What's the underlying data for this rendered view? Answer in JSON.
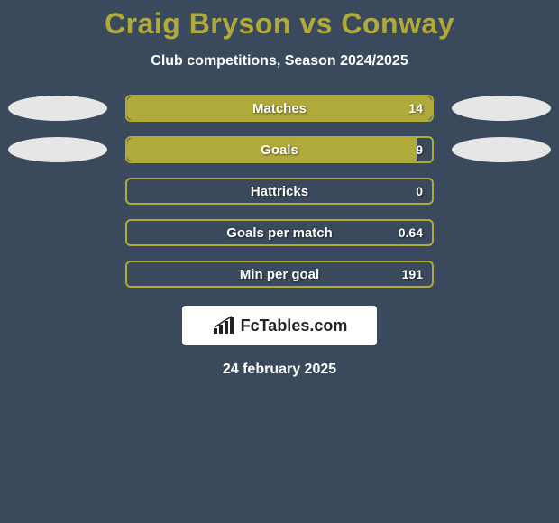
{
  "background_color": "#3a4a5c",
  "title": {
    "text": "Craig Bryson vs Conway",
    "color": "#b0aa3a",
    "fontsize": 32
  },
  "subtitle": {
    "text": "Club competitions, Season 2024/2025",
    "color": "#ffffff",
    "fontsize": 16
  },
  "ellipse_color": "#e6e6e6",
  "bar_border_color": "#b0aa3a",
  "bar_fill_color": "#b0aa3a",
  "bar_empty_color": "transparent",
  "stats": [
    {
      "label": "Matches",
      "value": "14",
      "fill_pct": 100,
      "show_ellipses": true
    },
    {
      "label": "Goals",
      "value": "9",
      "fill_pct": 95,
      "show_ellipses": true
    },
    {
      "label": "Hattricks",
      "value": "0",
      "fill_pct": 0,
      "show_ellipses": false
    },
    {
      "label": "Goals per match",
      "value": "0.64",
      "fill_pct": 0,
      "show_ellipses": false
    },
    {
      "label": "Min per goal",
      "value": "191",
      "fill_pct": 0,
      "show_ellipses": false
    }
  ],
  "branding": {
    "background": "#ffffff",
    "text": "FcTables.com",
    "text_color": "#222222",
    "icon_color": "#222222"
  },
  "date": {
    "text": "24 february 2025",
    "color": "#ffffff"
  }
}
